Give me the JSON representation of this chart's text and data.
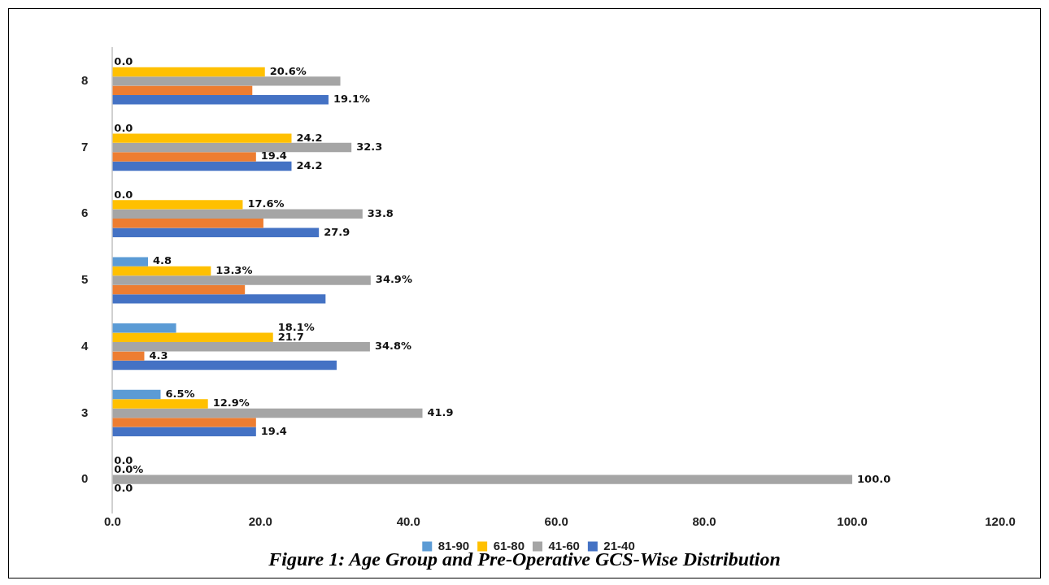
{
  "chart_data": {
    "type": "bar",
    "orientation": "horizontal",
    "title": "Figure 1: Age Group and Pre-Operative GCS-Wise Distribution",
    "categories": [
      "8",
      "7",
      "6",
      "5",
      "4",
      "3",
      "0"
    ],
    "series": [
      {
        "name": "81-90",
        "color": "#5b9bd5",
        "values": [
          0,
          0,
          0,
          4.8,
          8.6,
          6.5,
          0
        ],
        "value_labels": [
          null,
          null,
          null,
          "4.8",
          null,
          "6.5%",
          null
        ]
      },
      {
        "name": "61-80",
        "color": "#ffc000",
        "values": [
          20.6,
          24.2,
          17.6,
          13.3,
          21.7,
          12.9,
          0
        ],
        "value_labels": [
          "20.6%",
          "24.2",
          "17.6%",
          "13.3%",
          "21.7",
          "12.9%",
          "0.0%"
        ]
      },
      {
        "name": "41-60",
        "color": "#a5a5a5",
        "values": [
          30.8,
          32.3,
          33.8,
          34.9,
          34.8,
          41.9,
          100
        ],
        "value_labels": [
          null,
          "32.3",
          "33.8",
          "34.9%",
          "34.8%",
          "41.9",
          "100.0"
        ]
      },
      {
        "color": "#ed7d31",
        "values": [
          18.9,
          19.4,
          20.4,
          17.9,
          4.3,
          19.4,
          0
        ],
        "value_labels": [
          null,
          "19.4",
          null,
          null,
          "4.3",
          null,
          "0.0"
        ]
      },
      {
        "name": "21-40",
        "color": "#4472c4",
        "values": [
          29.2,
          24.2,
          27.9,
          28.8,
          30.3,
          19.4,
          0
        ],
        "value_labels": [
          null,
          "24.2",
          "27.9",
          null,
          null,
          "19.4",
          null
        ]
      }
    ],
    "xlim": [
      0,
      120
    ],
    "xticks": [
      {
        "value": 0,
        "label": "0.0"
      },
      {
        "value": 20,
        "label": "20.0"
      },
      {
        "value": 40,
        "label": "40.0"
      },
      {
        "value": 60,
        "label": "60.0"
      },
      {
        "value": 80,
        "label": "80.0"
      },
      {
        "value": 100,
        "label": "100.0"
      },
      {
        "value": 120,
        "label": "120.0"
      }
    ],
    "grid": false,
    "legend": "bottom",
    "annotations": [
      {
        "text": "0.0",
        "x": 0,
        "y": "8"
      },
      {
        "text": "0.0",
        "x": 0,
        "y": "7"
      },
      {
        "text": "0.0",
        "x": 0,
        "y": "6"
      },
      {
        "text": "0.0",
        "x": 0,
        "y": "0"
      },
      {
        "text": "19.1%",
        "x": 29.2,
        "y": "8"
      },
      {
        "text": "18.1%",
        "x": 21.7,
        "y": "4"
      }
    ]
  }
}
